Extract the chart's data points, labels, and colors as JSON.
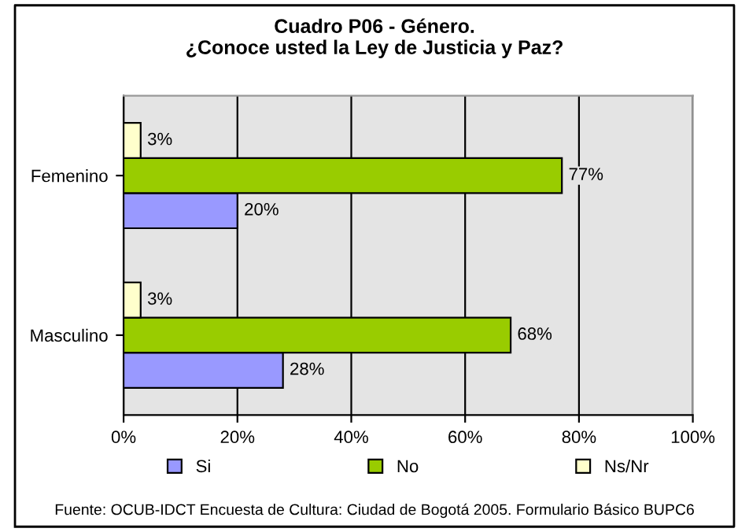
{
  "chart_data": {
    "type": "bar",
    "orientation": "horizontal",
    "title": "Cuadro P06 - Género.\n¿Conoce usted la Ley de Justicia y Paz?",
    "categories": [
      "Femenino",
      "Masculino"
    ],
    "series": [
      {
        "name": "Si",
        "color": "#9999ff",
        "values": [
          20,
          28
        ],
        "value_labels": [
          "20%",
          "28%"
        ]
      },
      {
        "name": "No",
        "color": "#99cc00",
        "values": [
          77,
          68
        ],
        "value_labels": [
          "77%",
          "68%"
        ]
      },
      {
        "name": "Ns/Nr",
        "color": "#ffffcc",
        "values": [
          3,
          3
        ],
        "value_labels": [
          "3%",
          "3%"
        ]
      }
    ],
    "xlim": [
      0,
      100
    ],
    "xticks": [
      {
        "value": 0,
        "label": "0%"
      },
      {
        "value": 20,
        "label": "20%"
      },
      {
        "value": 40,
        "label": "40%"
      },
      {
        "value": 60,
        "label": "60%"
      },
      {
        "value": 80,
        "label": "80%"
      },
      {
        "value": 100,
        "label": "100%"
      }
    ],
    "grid": "x",
    "legend": "bottom",
    "annotations": [
      "Fuente: OCUB-IDCT Encuesta de Cultura: Ciudad de Bogotá 2005. Formulario Básico BUPC6"
    ]
  }
}
